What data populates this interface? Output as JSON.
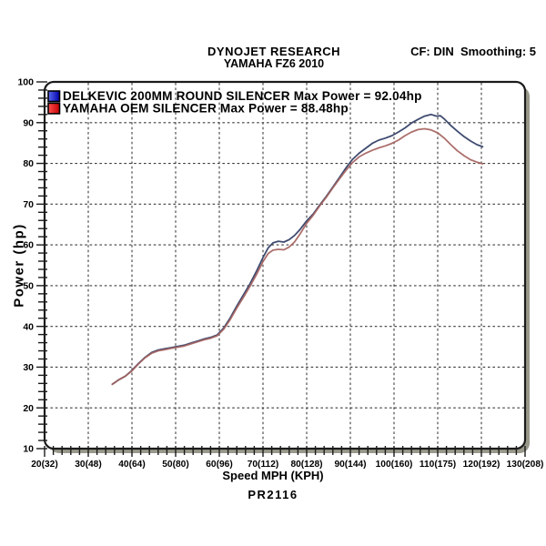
{
  "header": {
    "title": "DYNOJET RESEARCH",
    "subtitle": "YAMAHA FZ6 2010",
    "correction_note": "CF: DIN  Smoothing: 5"
  },
  "footer": {
    "run_id": "PR2116"
  },
  "axes": {
    "x_title": "Speed MPH (KPH)",
    "y_title": "Power (hp)"
  },
  "colors": {
    "background": "#ffffff",
    "frame": "#1b1b1b",
    "frame_shadow": "#99988a",
    "grid": "#3c3c3c",
    "tick": "#1b1b1b",
    "text": "#000000",
    "delkevic_line": "#3f4b70",
    "oem_line": "#a5635f"
  },
  "chart_data": {
    "type": "line",
    "title": "DYNOJET RESEARCH",
    "subtitle": "YAMAHA FZ6 2010",
    "xlabel": "Speed MPH (KPH)",
    "ylabel": "Power (hp)",
    "xlim": [
      20,
      130
    ],
    "ylim": [
      10,
      100
    ],
    "x_major_step": 10,
    "y_major_step": 10,
    "minor_tick_step": 2,
    "grid": "dashed",
    "legend_position": "top-left",
    "x_tick_values": [
      20,
      30,
      40,
      50,
      60,
      70,
      80,
      90,
      100,
      110,
      120,
      130
    ],
    "x_tick_labels": [
      "20(32)",
      "30(48)",
      "40(64)",
      "50(80)",
      "60(96)",
      "70(112)",
      "80(128)",
      "90(144)",
      "100(160)",
      "110(175)",
      "120(192)",
      "130(208)"
    ],
    "y_tick_values": [
      10,
      20,
      30,
      40,
      50,
      60,
      70,
      80,
      90,
      100
    ],
    "y_tick_labels": [
      "10",
      "20",
      "30",
      "40",
      "50",
      "60",
      "70",
      "80",
      "90",
      "100"
    ],
    "series": [
      {
        "name": "DELKEVIC 200MM ROUND SILENCER",
        "legend_label": "DELKEVIC 200MM ROUND SILENCER Max Power = 92.04hp",
        "max_power_hp": 92.04,
        "color": "#3f4b70",
        "swatch_gradient": [
          "#5b6bf0",
          "#0000a8"
        ],
        "points": [
          [
            35.5,
            25.8
          ],
          [
            37,
            26.9
          ],
          [
            38.5,
            27.8
          ],
          [
            40,
            29.2
          ],
          [
            41.5,
            30.9
          ],
          [
            43,
            32.4
          ],
          [
            44.5,
            33.6
          ],
          [
            46,
            34.2
          ],
          [
            47.5,
            34.5
          ],
          [
            49,
            34.8
          ],
          [
            50.5,
            35.1
          ],
          [
            52,
            35.4
          ],
          [
            53.5,
            35.9
          ],
          [
            55,
            36.4
          ],
          [
            56.5,
            36.9
          ],
          [
            58,
            37.3
          ],
          [
            59.5,
            37.9
          ],
          [
            61,
            39.6
          ],
          [
            62.5,
            42.1
          ],
          [
            64,
            45.0
          ],
          [
            65.5,
            47.7
          ],
          [
            67,
            50.4
          ],
          [
            68.5,
            53.5
          ],
          [
            70,
            56.9
          ],
          [
            71.2,
            59.3
          ],
          [
            72.3,
            60.5
          ],
          [
            73.5,
            60.9
          ],
          [
            74.8,
            60.7
          ],
          [
            76,
            61.3
          ],
          [
            77.2,
            62.3
          ],
          [
            78.5,
            63.8
          ],
          [
            80,
            65.9
          ],
          [
            81.5,
            67.6
          ],
          [
            83,
            69.8
          ],
          [
            84.5,
            71.9
          ],
          [
            86,
            74.2
          ],
          [
            87.5,
            76.5
          ],
          [
            89,
            78.9
          ],
          [
            90.5,
            81.0
          ],
          [
            92,
            82.5
          ],
          [
            93.5,
            83.7
          ],
          [
            95,
            84.9
          ],
          [
            96.5,
            85.7
          ],
          [
            98,
            86.2
          ],
          [
            99.5,
            86.8
          ],
          [
            101,
            87.7
          ],
          [
            102.5,
            88.7
          ],
          [
            104,
            89.9
          ],
          [
            105.5,
            90.8
          ],
          [
            107,
            91.6
          ],
          [
            108.5,
            92.0
          ],
          [
            109.7,
            91.6
          ],
          [
            110.6,
            91.7
          ],
          [
            111.5,
            90.9
          ],
          [
            113,
            89.3
          ],
          [
            114.5,
            87.9
          ],
          [
            116,
            86.6
          ],
          [
            117.5,
            85.5
          ],
          [
            119,
            84.6
          ],
          [
            120.3,
            84.1
          ]
        ]
      },
      {
        "name": "YAMAHA OEM SILENCER",
        "legend_label": "YAMAHA OEM SILENCER Max Power = 88.48hp",
        "max_power_hp": 88.48,
        "color": "#a5635f",
        "swatch_gradient": [
          "#ff5050",
          "#c40000"
        ],
        "points": [
          [
            35.5,
            25.8
          ],
          [
            37,
            26.9
          ],
          [
            38.5,
            27.8
          ],
          [
            40,
            29.1
          ],
          [
            41.5,
            30.8
          ],
          [
            43,
            32.3
          ],
          [
            44.5,
            33.4
          ],
          [
            46,
            34.0
          ],
          [
            47.5,
            34.3
          ],
          [
            49,
            34.6
          ],
          [
            50.5,
            34.9
          ],
          [
            52,
            35.2
          ],
          [
            53.5,
            35.7
          ],
          [
            55,
            36.2
          ],
          [
            56.5,
            36.7
          ],
          [
            58,
            37.1
          ],
          [
            59.5,
            37.7
          ],
          [
            61,
            39.3
          ],
          [
            62.5,
            41.7
          ],
          [
            64,
            44.5
          ],
          [
            65.5,
            47.1
          ],
          [
            67,
            49.8
          ],
          [
            68.5,
            52.7
          ],
          [
            70,
            55.9
          ],
          [
            71.2,
            57.9
          ],
          [
            72.3,
            58.7
          ],
          [
            73.5,
            58.9
          ],
          [
            74.8,
            58.8
          ],
          [
            76,
            59.5
          ],
          [
            77.2,
            60.7
          ],
          [
            78.5,
            62.7
          ],
          [
            80,
            65.3
          ],
          [
            81.5,
            67.3
          ],
          [
            83,
            69.6
          ],
          [
            84.5,
            71.7
          ],
          [
            86,
            74.0
          ],
          [
            87.5,
            76.2
          ],
          [
            89,
            78.3
          ],
          [
            90.5,
            80.2
          ],
          [
            92,
            81.6
          ],
          [
            93.5,
            82.5
          ],
          [
            95,
            83.2
          ],
          [
            96.5,
            83.8
          ],
          [
            98,
            84.3
          ],
          [
            99.5,
            84.9
          ],
          [
            101,
            85.7
          ],
          [
            102.5,
            86.8
          ],
          [
            104,
            87.7
          ],
          [
            105.5,
            88.3
          ],
          [
            107,
            88.5
          ],
          [
            108.5,
            88.2
          ],
          [
            110,
            87.5
          ],
          [
            111.5,
            86.2
          ],
          [
            113,
            84.6
          ],
          [
            114.5,
            83.1
          ],
          [
            116,
            81.9
          ],
          [
            117.5,
            80.9
          ],
          [
            119,
            80.3
          ],
          [
            120.3,
            79.9
          ]
        ]
      }
    ]
  }
}
